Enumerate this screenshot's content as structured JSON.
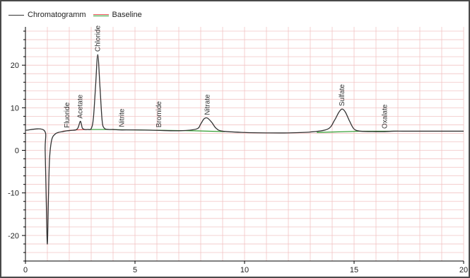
{
  "legend": {
    "chromatogram_label": "Chromatogramm",
    "baseline_label": "Baseline"
  },
  "colors": {
    "signal": "#333333",
    "baseline_red": "#e05050",
    "baseline_green": "#2a9a2a",
    "grid": "#f2c4c4",
    "axis": "#000000"
  },
  "chart_data": {
    "type": "line",
    "title": "",
    "xlabel": "",
    "ylabel": "",
    "xlim": [
      0,
      20
    ],
    "ylim": [
      -26,
      29
    ],
    "xticks": [
      0,
      5,
      10,
      15,
      20
    ],
    "yticks": [
      -20,
      -10,
      0,
      10,
      20
    ],
    "grid": true,
    "legend_position": "top-left",
    "series": [
      {
        "name": "Chromatogramm",
        "baseline_level": 4.6,
        "x": [
          0,
          0.85,
          0.9,
          0.95,
          1.0,
          1.05,
          1.1,
          1.2,
          1.35,
          1.5,
          1.7,
          1.9,
          2.1,
          2.3,
          2.4,
          2.5,
          2.55,
          2.6,
          2.7,
          2.85,
          3.0,
          3.1,
          3.2,
          3.3,
          3.4,
          3.5,
          3.6,
          3.8,
          4.0,
          4.3,
          5.0,
          6.0,
          7.0,
          7.8,
          8.0,
          8.15,
          8.3,
          8.5,
          8.7,
          9.0,
          10.0,
          11.0,
          12.0,
          13.0,
          13.8,
          14.1,
          14.3,
          14.45,
          14.6,
          14.8,
          15.0,
          15.3,
          16.0,
          16.4,
          16.8,
          17.5,
          18.5,
          19.5,
          20.0
        ],
        "y": [
          4.7,
          4.7,
          0,
          -12,
          -22,
          -11,
          -2,
          2.5,
          3.8,
          4.2,
          4.4,
          4.6,
          4.7,
          4.8,
          5.3,
          6.8,
          6.2,
          5.2,
          4.9,
          4.9,
          5.1,
          7.5,
          15,
          22.5,
          15,
          7,
          5.2,
          4.9,
          4.9,
          4.8,
          4.8,
          4.7,
          4.6,
          5.0,
          6.2,
          7.4,
          7.6,
          6.6,
          5.2,
          4.5,
          4.2,
          4.1,
          4.1,
          4.3,
          5.0,
          7.0,
          8.9,
          9.7,
          9.0,
          6.8,
          5.0,
          4.5,
          4.4,
          4.4,
          4.5,
          4.5,
          4.5,
          4.5,
          4.5
        ]
      }
    ],
    "peaks": [
      {
        "label": "Fluoride",
        "x": 1.9,
        "y": 4.6
      },
      {
        "label": "Acetate",
        "x": 2.5,
        "y": 6.8
      },
      {
        "label": "Chloride",
        "x": 3.3,
        "y": 22.5
      },
      {
        "label": "Nitrite",
        "x": 4.4,
        "y": 4.8
      },
      {
        "label": "Bromide",
        "x": 6.1,
        "y": 4.7
      },
      {
        "label": "Nitrate",
        "x": 8.3,
        "y": 7.6
      },
      {
        "label": "Sulfate",
        "x": 14.45,
        "y": 9.7
      },
      {
        "label": "Oxalate",
        "x": 16.4,
        "y": 4.4
      }
    ],
    "baselines": [
      {
        "color": "red",
        "x": [
          1.7,
          2.3
        ],
        "y": [
          4.5,
          4.8
        ]
      },
      {
        "color": "red",
        "x": [
          2.3,
          2.85
        ],
        "y": [
          4.8,
          4.9
        ]
      },
      {
        "color": "green",
        "x": [
          2.85,
          3.7
        ],
        "y": [
          4.9,
          4.9
        ]
      },
      {
        "color": "green",
        "x": [
          3.7,
          7.7
        ],
        "y": [
          4.9,
          4.6
        ]
      },
      {
        "color": "green",
        "x": [
          7.7,
          9.1
        ],
        "y": [
          4.6,
          4.4
        ]
      },
      {
        "color": "green",
        "x": [
          13.3,
          15.4
        ],
        "y": [
          4.2,
          4.5
        ]
      },
      {
        "color": "green",
        "x": [
          15.4,
          17.0
        ],
        "y": [
          4.5,
          4.5
        ]
      }
    ]
  }
}
